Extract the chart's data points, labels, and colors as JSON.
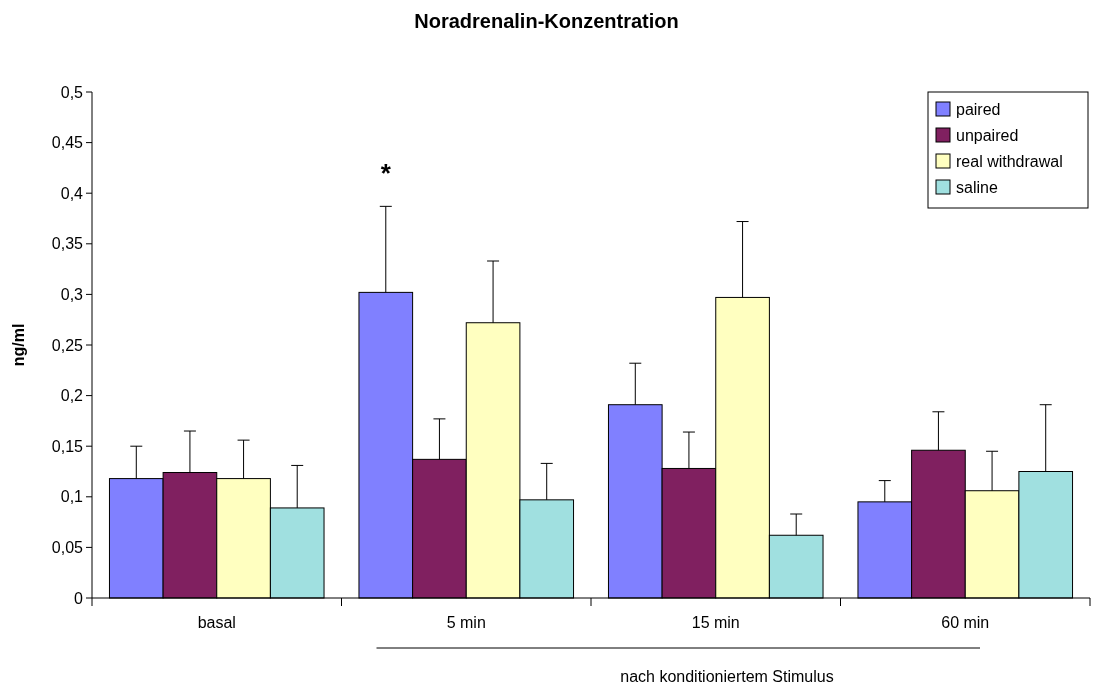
{
  "chart_data": {
    "type": "bar",
    "title": "Noradrenalin-Konzentration",
    "ylabel": "ng/ml",
    "categories": [
      "basal",
      "5 min",
      "15 min",
      "60 min"
    ],
    "series": [
      {
        "name": "paired",
        "color": "#8080ff",
        "values": [
          0.118,
          0.302,
          0.191,
          0.095
        ],
        "errors": [
          [
            0.118,
            0.15
          ],
          [
            0.302,
            0.387
          ],
          [
            0.191,
            0.232
          ],
          [
            0.095,
            0.116
          ]
        ]
      },
      {
        "name": "unpaired",
        "color": "#802060",
        "values": [
          0.124,
          0.137,
          0.128,
          0.146
        ],
        "errors": [
          [
            0.124,
            0.165
          ],
          [
            0.137,
            0.177
          ],
          [
            0.128,
            0.164
          ],
          [
            0.146,
            0.184
          ]
        ]
      },
      {
        "name": "real withdrawal",
        "color": "#ffffc0",
        "values": [
          0.118,
          0.272,
          0.297,
          0.106
        ],
        "errors": [
          [
            0.118,
            0.156
          ],
          [
            0.272,
            0.333
          ],
          [
            0.297,
            0.372
          ],
          [
            0.106,
            0.145
          ]
        ]
      },
      {
        "name": "saline",
        "color": "#a0e0e0",
        "values": [
          0.089,
          0.097,
          0.062,
          0.125
        ],
        "errors": [
          [
            0.089,
            0.131
          ],
          [
            0.097,
            0.133
          ],
          [
            0.062,
            0.083
          ],
          [
            0.125,
            0.191
          ]
        ]
      }
    ],
    "ylim": [
      0,
      0.5
    ],
    "yticks": [
      {
        "value": 0,
        "label": "0"
      },
      {
        "value": 0.05,
        "label": "0,05"
      },
      {
        "value": 0.1,
        "label": "0,1"
      },
      {
        "value": 0.15,
        "label": "0,15"
      },
      {
        "value": 0.2,
        "label": "0,2"
      },
      {
        "value": 0.25,
        "label": "0,25"
      },
      {
        "value": 0.3,
        "label": "0,3"
      },
      {
        "value": 0.35,
        "label": "0,35"
      },
      {
        "value": 0.4,
        "label": "0,4"
      },
      {
        "value": 0.45,
        "label": "0,45"
      },
      {
        "value": 0.5,
        "label": "0,5"
      }
    ],
    "grid": false,
    "legend": "top right",
    "annotations": [
      "*",
      "nach konditioniertem Stimulus"
    ]
  }
}
